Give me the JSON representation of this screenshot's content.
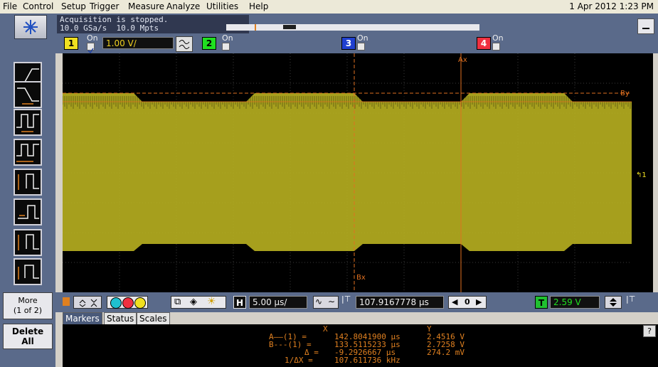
{
  "menu": [
    "File",
    "Control",
    "Setup",
    "Trigger",
    "Measure",
    "Analyze",
    "Utilities",
    "Help"
  ],
  "datetime": "1 Apr 2012 1:23 PM",
  "acquisition": {
    "status": "Acquisition is stopped.",
    "rate": "10.0 GSa/s  10.0 Mpts"
  },
  "channels": [
    {
      "num": "1",
      "on_label": "On",
      "color": "#f0e020",
      "checked": true,
      "scale": "1.00 V/"
    },
    {
      "num": "2",
      "on_label": "On",
      "color": "#20e020",
      "checked": false
    },
    {
      "num": "3",
      "on_label": "On",
      "color": "#3050f0",
      "checked": false
    },
    {
      "num": "4",
      "on_label": "On",
      "color": "#f03040",
      "checked": false
    }
  ],
  "sidebar": {
    "more": "More",
    "more_page": "(1 of 2)",
    "delete": "Delete",
    "delete_all": "All"
  },
  "timebase": {
    "h_label": "H",
    "scale": "5.00 µs/",
    "position": "107.9167778 µs",
    "t_label": "T",
    "trigger_level": "2.59 V"
  },
  "tabs": [
    "Markers",
    "Status",
    "Scales"
  ],
  "markers_table": {
    "x_header": "X",
    "y_header": "Y",
    "rows": [
      {
        "label": "A——(1) =",
        "x": "142.8041900 µs",
        "y": "2.4516 V"
      },
      {
        "label": "B---(1) =",
        "x": "133.5115233 µs",
        "y": "2.7258 V"
      },
      {
        "label": "Δ =",
        "x": "-9.2926667 µs",
        "y": "274.2 mV"
      },
      {
        "label": "1/ΔX =",
        "x": "107.611736 kHz",
        "y": ""
      }
    ]
  },
  "waveform_labels": {
    "ax": "Ax",
    "bx": "Bx",
    "by": "By",
    "trig_marker": "1"
  },
  "colors": {
    "trace": "#b8b020",
    "marker": "#e07020",
    "grid": "#3a3a3a"
  },
  "help": "?"
}
